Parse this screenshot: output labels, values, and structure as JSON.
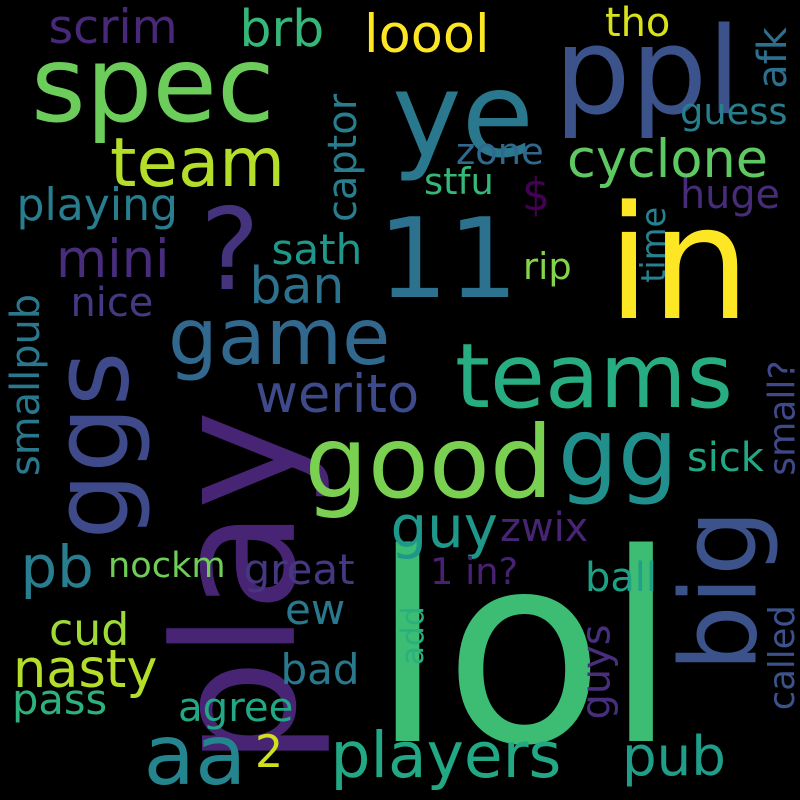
{
  "background": "#000000",
  "words": [
    {
      "text": "lol",
      "color": "#3dbc74"
    },
    {
      "text": "in",
      "color": "#fde725"
    },
    {
      "text": "11",
      "color": "#2c728e"
    },
    {
      "text": "play",
      "color": "#482475"
    },
    {
      "text": "ye",
      "color": "#2a788e"
    },
    {
      "text": "spec",
      "color": "#6ccd5a"
    },
    {
      "text": "ppl",
      "color": "#3b528b"
    },
    {
      "text": "teams",
      "color": "#27ad81"
    },
    {
      "text": "gg",
      "color": "#21908d"
    },
    {
      "text": "good",
      "color": "#7ad151"
    },
    {
      "text": "ggs",
      "color": "#3e4a89"
    },
    {
      "text": "aa",
      "color": "#25858e"
    },
    {
      "text": "big",
      "color": "#3b528b"
    },
    {
      "text": "game",
      "color": "#31688e"
    },
    {
      "text": "?",
      "color": "#46337e"
    },
    {
      "text": "players",
      "color": "#22a884"
    },
    {
      "text": "team",
      "color": "#b5de2b"
    },
    {
      "text": "cyclone",
      "color": "#5ec962"
    },
    {
      "text": "pub",
      "color": "#1f9e89"
    },
    {
      "text": "nasty",
      "color": "#b5de2b"
    },
    {
      "text": "werito",
      "color": "#3e4a89"
    },
    {
      "text": "mini",
      "color": "#472d7b"
    },
    {
      "text": "brb",
      "color": "#35b779"
    },
    {
      "text": "scrim",
      "color": "#482878"
    },
    {
      "text": "loool",
      "color": "#fde725"
    },
    {
      "text": "ban",
      "color": "#2c728e"
    },
    {
      "text": "guy",
      "color": "#1f988b"
    },
    {
      "text": "playing",
      "color": "#287d8e"
    },
    {
      "text": "pb",
      "color": "#287d8e"
    },
    {
      "text": "captor",
      "color": "#287d8e"
    },
    {
      "text": "tho",
      "color": "#d8e219"
    },
    {
      "text": "$",
      "color": "#440154"
    },
    {
      "text": "stfu",
      "color": "#35b779"
    },
    {
      "text": "zone",
      "color": "#31688e"
    },
    {
      "text": "guess",
      "color": "#277f8e"
    },
    {
      "text": "huge",
      "color": "#472c7a"
    },
    {
      "text": "sath",
      "color": "#1f988b"
    },
    {
      "text": "nice",
      "color": "#443a83"
    },
    {
      "text": "rip",
      "color": "#84d44b"
    },
    {
      "text": "time",
      "color": "#26828e"
    },
    {
      "text": "afk",
      "color": "#2d708e"
    },
    {
      "text": "smallpub",
      "color": "#2a788e"
    },
    {
      "text": "sick",
      "color": "#22a884"
    },
    {
      "text": "small?",
      "color": "#3f4889"
    },
    {
      "text": "zwix",
      "color": "#482475"
    },
    {
      "text": "nockm",
      "color": "#6ece58"
    },
    {
      "text": "great",
      "color": "#453781"
    },
    {
      "text": "1 in?",
      "color": "#482173"
    },
    {
      "text": "ball",
      "color": "#1fa187"
    },
    {
      "text": "ew",
      "color": "#2a788e"
    },
    {
      "text": "cud",
      "color": "#a0da39"
    },
    {
      "text": "add",
      "color": "#2ab07f"
    },
    {
      "text": "guys",
      "color": "#472f7d"
    },
    {
      "text": "called",
      "color": "#3b528b"
    },
    {
      "text": "bad",
      "color": "#2a788e"
    },
    {
      "text": "pass",
      "color": "#2db27d"
    },
    {
      "text": "agree",
      "color": "#22a884"
    },
    {
      "text": "2",
      "color": "#d0e11c"
    }
  ]
}
